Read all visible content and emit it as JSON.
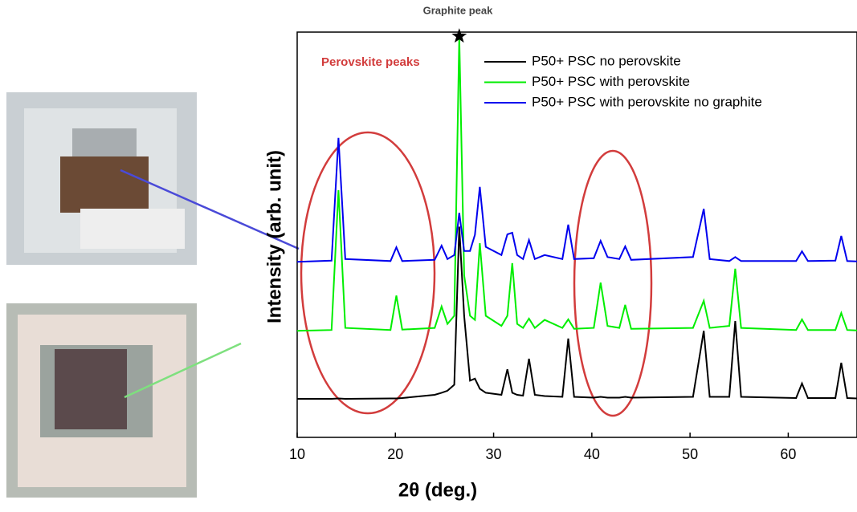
{
  "chart_data": {
    "type": "line",
    "title": "Graphite peak",
    "annotation": "Perovskite peaks",
    "x_label": "2θ (deg.)",
    "y_label": "Intensity (arb. unit)",
    "xlim": [
      10,
      67
    ],
    "xticks": [
      10,
      20,
      30,
      40,
      50,
      60
    ],
    "ylim": [
      0,
      100
    ],
    "legend": "upper right",
    "x": [
      10,
      13.5,
      14.2,
      14.9,
      19.5,
      20.1,
      20.7,
      24,
      24.7,
      25.3,
      26.0,
      26.5,
      27.0,
      27.6,
      28.1,
      28.6,
      29.2,
      30.8,
      31.4,
      31.9,
      32.4,
      33.0,
      33.6,
      34.2,
      35.2,
      37.0,
      37.6,
      38.2,
      40.2,
      40.9,
      41.6,
      42.8,
      43.4,
      44.0,
      50.3,
      51.4,
      52.0,
      54.0,
      54.6,
      55.2,
      60.8,
      61.4,
      62.0,
      64.8,
      65.4,
      66.0,
      67
    ],
    "series": [
      {
        "name": "P50+ PSC no perovskite",
        "color": "#000000",
        "values": [
          9.5,
          9.5,
          9.6,
          9.5,
          9.6,
          9.6,
          9.7,
          10.5,
          11,
          11.5,
          13,
          52,
          30,
          14,
          14.5,
          12,
          11,
          10.5,
          16.8,
          11,
          10.5,
          10.3,
          19.4,
          10.5,
          10.2,
          10,
          24.4,
          10,
          9.8,
          10,
          9.8,
          9.8,
          10,
          9.8,
          10,
          26.3,
          10,
          10,
          28.7,
          10,
          9.7,
          13.3,
          9.7,
          9.7,
          18.4,
          9.7,
          9.6
        ]
      },
      {
        "name": "P50+ PSC with perovskite",
        "color": "#00ee00",
        "values": [
          26.3,
          26.5,
          61,
          27,
          26.5,
          35,
          26.6,
          27,
          32.3,
          28,
          30,
          99,
          40,
          30,
          29,
          47.9,
          30,
          27.5,
          30,
          43,
          28,
          27,
          29.3,
          27,
          29,
          27,
          29.1,
          26.8,
          27,
          38.2,
          27.5,
          27,
          32.7,
          26.8,
          27,
          33.7,
          27,
          27.5,
          41.6,
          27,
          26.5,
          29.1,
          26.5,
          26.5,
          30.7,
          26.5,
          26.4
        ]
      },
      {
        "name": "P50+ PSC with perovskite no graphite",
        "color": "#0000ee",
        "values": [
          43.3,
          43.6,
          73.9,
          44,
          43.5,
          46.9,
          43.5,
          43.8,
          47.3,
          44,
          45,
          55.4,
          46,
          46,
          50,
          61.8,
          47,
          45,
          50.1,
          50.5,
          45,
          44,
          48.7,
          44,
          45,
          44,
          52.5,
          44,
          44.2,
          48.5,
          44.5,
          44,
          47.1,
          43.8,
          44.5,
          56.4,
          44,
          43.5,
          44.5,
          43.5,
          43.5,
          45.9,
          43.5,
          43.6,
          49.7,
          43.5,
          43.4
        ]
      }
    ]
  }
}
